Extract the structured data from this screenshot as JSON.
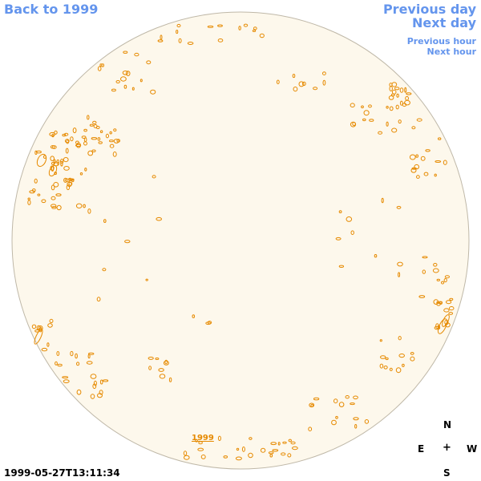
{
  "nav": {
    "back_label": "Back to 1999",
    "previous_day_label": "Previous day",
    "next_day_label": "Next day",
    "previous_hour_label": "Previous hour",
    "next_hour_label": "Next hour"
  },
  "disk": {
    "label": "1999",
    "fill_color": "#fdf8ec",
    "edge_color": "#bfb8a8",
    "contour_color": "#e68a00"
  },
  "compass": {
    "north": "N",
    "east": "E",
    "center": "+",
    "west": "W",
    "south": "S"
  },
  "timestamp": "1999-05-27T13:11:34",
  "colors": {
    "link": "#6495ed",
    "contour": "#e68a00"
  }
}
